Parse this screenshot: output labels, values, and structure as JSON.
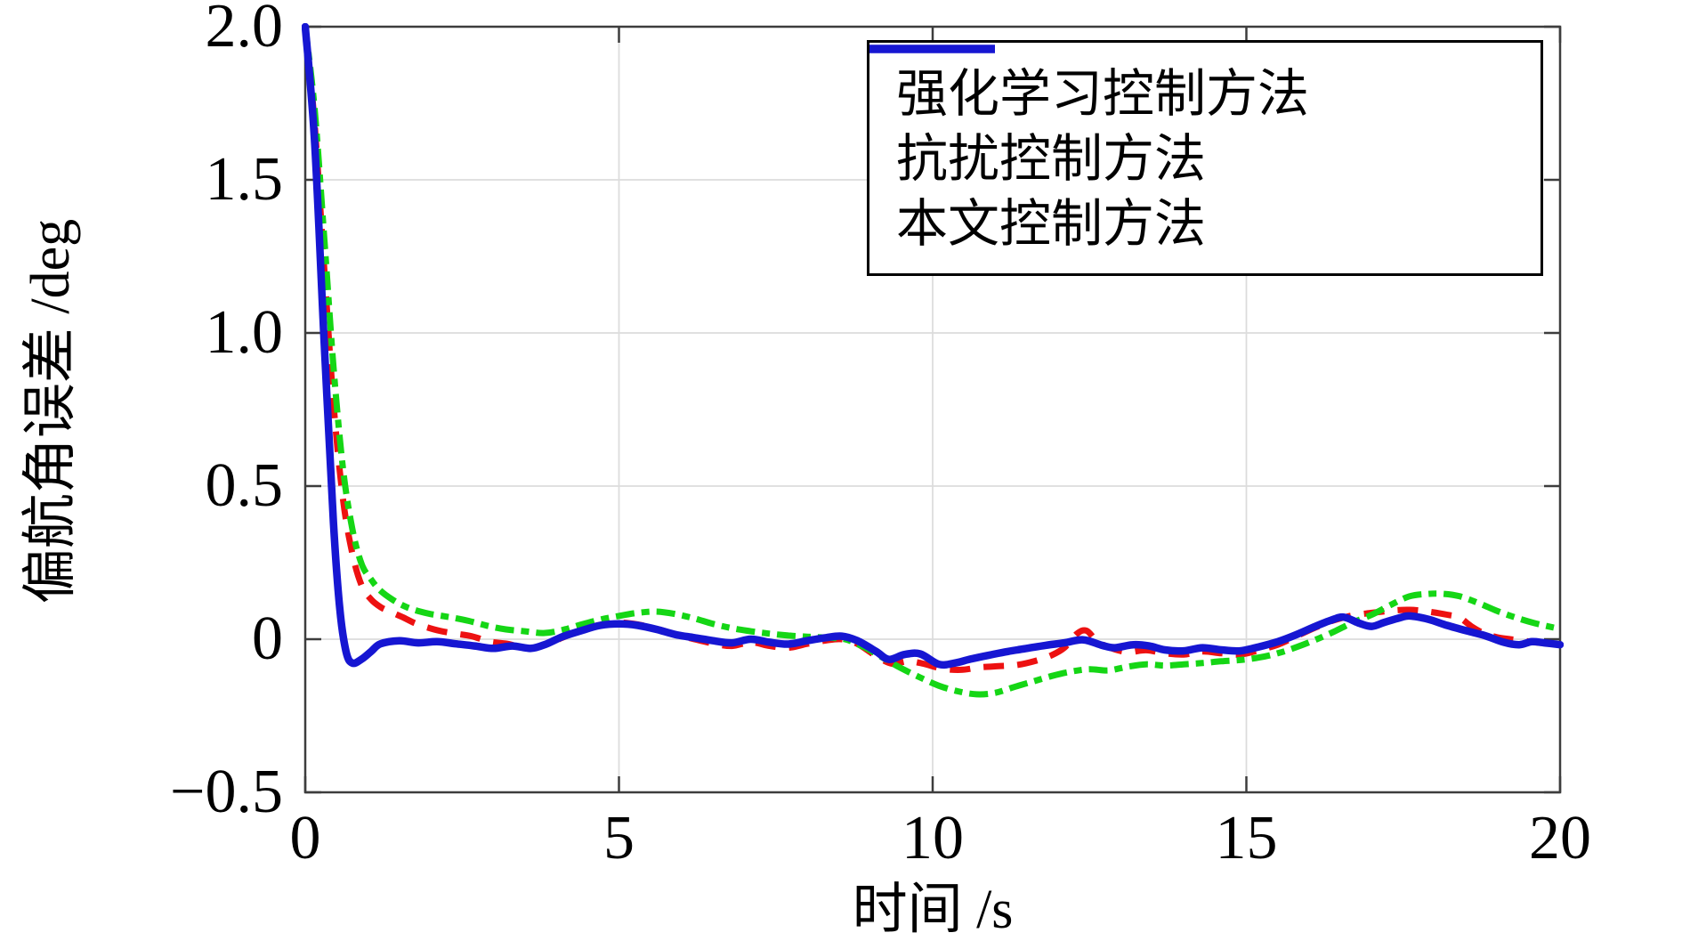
{
  "chart_data": {
    "type": "line",
    "title": "",
    "xlabel": "时间 /s",
    "ylabel": "偏航角误差 /deg",
    "xlim": [
      0,
      20
    ],
    "ylim": [
      -0.5,
      2.0
    ],
    "grid": "on",
    "legend_position": "top-right",
    "xticks": {
      "values": [
        0,
        5,
        10,
        15,
        20
      ],
      "labels": [
        "0",
        "5",
        "10",
        "15",
        "20"
      ]
    },
    "yticks": {
      "values": [
        -0.5,
        0,
        0.5,
        1.0,
        1.5,
        2.0
      ],
      "labels": [
        "−0.5",
        "0",
        "0.5",
        "1.0",
        "1.5",
        "2.0"
      ]
    },
    "grid_x": [
      5,
      10,
      15
    ],
    "grid_y": [
      0,
      0.5,
      1.0,
      1.5
    ],
    "style": {
      "axis_color": "#3d3d3d",
      "grid_color": "#dcdcdc",
      "legend_border_color": "#000000",
      "background": "#ffffff"
    },
    "series": [
      {
        "name": "强化学习控制方法",
        "color": "#ed1111",
        "line_style": "dashed",
        "dash": "23 15",
        "legend_dash": "30 26",
        "width": 7,
        "points": [
          [
            0,
            2.0
          ],
          [
            0.15,
            1.68
          ],
          [
            0.3,
            1.22
          ],
          [
            0.45,
            0.77
          ],
          [
            0.6,
            0.46
          ],
          [
            0.75,
            0.28
          ],
          [
            0.9,
            0.175
          ],
          [
            1.05,
            0.13
          ],
          [
            1.2,
            0.105
          ],
          [
            1.35,
            0.09
          ],
          [
            1.55,
            0.072
          ],
          [
            1.75,
            0.052
          ],
          [
            1.95,
            0.038
          ],
          [
            2.15,
            0.027
          ],
          [
            2.4,
            0.018
          ],
          [
            2.65,
            0.01
          ],
          [
            2.95,
            -0.008
          ],
          [
            3.25,
            -0.016
          ],
          [
            3.5,
            -0.03
          ],
          [
            3.8,
            -0.02
          ],
          [
            4.1,
            0.005
          ],
          [
            4.4,
            0.03
          ],
          [
            4.7,
            0.047
          ],
          [
            5.0,
            0.054
          ],
          [
            5.3,
            0.048
          ],
          [
            5.6,
            0.034
          ],
          [
            5.9,
            0.016
          ],
          [
            6.2,
            0.0
          ],
          [
            6.5,
            -0.014
          ],
          [
            6.8,
            -0.022
          ],
          [
            7.1,
            -0.01
          ],
          [
            7.4,
            -0.022
          ],
          [
            7.7,
            -0.028
          ],
          [
            8.0,
            -0.015
          ],
          [
            8.3,
            -0.004
          ],
          [
            8.55,
            0.0
          ],
          [
            8.8,
            -0.015
          ],
          [
            9.1,
            -0.055
          ],
          [
            9.35,
            -0.08
          ],
          [
            9.6,
            -0.072
          ],
          [
            9.85,
            -0.08
          ],
          [
            10.15,
            -0.096
          ],
          [
            10.45,
            -0.1
          ],
          [
            10.75,
            -0.092
          ],
          [
            11.05,
            -0.088
          ],
          [
            11.35,
            -0.084
          ],
          [
            11.65,
            -0.07
          ],
          [
            11.9,
            -0.052
          ],
          [
            12.1,
            -0.028
          ],
          [
            12.3,
            0.018
          ],
          [
            12.45,
            0.028
          ],
          [
            12.6,
            -0.002
          ],
          [
            12.8,
            -0.026
          ],
          [
            13.1,
            -0.042
          ],
          [
            13.4,
            -0.036
          ],
          [
            13.7,
            -0.046
          ],
          [
            14.0,
            -0.05
          ],
          [
            14.3,
            -0.04
          ],
          [
            14.6,
            -0.046
          ],
          [
            14.9,
            -0.05
          ],
          [
            15.2,
            -0.036
          ],
          [
            15.5,
            -0.018
          ],
          [
            15.8,
            0.01
          ],
          [
            16.1,
            0.038
          ],
          [
            16.4,
            0.062
          ],
          [
            16.7,
            0.078
          ],
          [
            17.0,
            0.086
          ],
          [
            17.3,
            0.093
          ],
          [
            17.6,
            0.096
          ],
          [
            17.9,
            0.09
          ],
          [
            18.2,
            0.08
          ],
          [
            18.4,
            0.07
          ],
          [
            18.6,
            0.04
          ],
          [
            18.8,
            0.018
          ],
          [
            19.0,
            0.006
          ],
          [
            19.2,
            0.0
          ],
          [
            19.45,
            -0.006
          ],
          [
            19.7,
            -0.012
          ],
          [
            20,
            -0.015
          ]
        ]
      },
      {
        "name": "抗扰控制方法",
        "color": "#15d615",
        "line_style": "dash-dot",
        "dash": "21 8 9 8",
        "legend_dash": "25 9 11 9",
        "width": 7,
        "points": [
          [
            0,
            2.0
          ],
          [
            0.15,
            1.73
          ],
          [
            0.3,
            1.32
          ],
          [
            0.45,
            0.89
          ],
          [
            0.6,
            0.56
          ],
          [
            0.75,
            0.36
          ],
          [
            0.9,
            0.245
          ],
          [
            1.05,
            0.195
          ],
          [
            1.2,
            0.158
          ],
          [
            1.4,
            0.128
          ],
          [
            1.6,
            0.106
          ],
          [
            1.8,
            0.092
          ],
          [
            2.0,
            0.082
          ],
          [
            2.3,
            0.072
          ],
          [
            2.6,
            0.06
          ],
          [
            2.9,
            0.044
          ],
          [
            3.2,
            0.032
          ],
          [
            3.5,
            0.026
          ],
          [
            3.8,
            0.02
          ],
          [
            4.1,
            0.03
          ],
          [
            4.4,
            0.048
          ],
          [
            4.7,
            0.064
          ],
          [
            5.0,
            0.076
          ],
          [
            5.3,
            0.086
          ],
          [
            5.6,
            0.09
          ],
          [
            5.9,
            0.082
          ],
          [
            6.2,
            0.068
          ],
          [
            6.5,
            0.05
          ],
          [
            6.8,
            0.036
          ],
          [
            7.1,
            0.026
          ],
          [
            7.4,
            0.018
          ],
          [
            7.7,
            0.012
          ],
          [
            8.0,
            0.008
          ],
          [
            8.3,
            0.005
          ],
          [
            8.6,
            0.0
          ],
          [
            8.9,
            -0.025
          ],
          [
            9.2,
            -0.06
          ],
          [
            9.5,
            -0.095
          ],
          [
            9.8,
            -0.125
          ],
          [
            10.1,
            -0.152
          ],
          [
            10.4,
            -0.17
          ],
          [
            10.7,
            -0.18
          ],
          [
            11.0,
            -0.175
          ],
          [
            11.3,
            -0.156
          ],
          [
            11.6,
            -0.138
          ],
          [
            11.9,
            -0.12
          ],
          [
            12.2,
            -0.106
          ],
          [
            12.5,
            -0.098
          ],
          [
            12.8,
            -0.102
          ],
          [
            13.1,
            -0.09
          ],
          [
            13.4,
            -0.082
          ],
          [
            13.7,
            -0.086
          ],
          [
            14.0,
            -0.082
          ],
          [
            14.3,
            -0.078
          ],
          [
            14.6,
            -0.072
          ],
          [
            14.9,
            -0.068
          ],
          [
            15.2,
            -0.06
          ],
          [
            15.5,
            -0.046
          ],
          [
            15.8,
            -0.026
          ],
          [
            16.1,
            -0.002
          ],
          [
            16.4,
            0.025
          ],
          [
            16.7,
            0.055
          ],
          [
            17.0,
            0.08
          ],
          [
            17.3,
            0.112
          ],
          [
            17.6,
            0.14
          ],
          [
            17.9,
            0.148
          ],
          [
            18.15,
            0.148
          ],
          [
            18.4,
            0.14
          ],
          [
            18.7,
            0.118
          ],
          [
            19.0,
            0.092
          ],
          [
            19.3,
            0.07
          ],
          [
            19.6,
            0.052
          ],
          [
            19.85,
            0.04
          ],
          [
            20,
            0.034
          ]
        ]
      },
      {
        "name": "本文控制方法",
        "color": "#1616d2",
        "line_style": "solid",
        "dash": "",
        "legend_dash": "",
        "width": 8.5,
        "points": [
          [
            0,
            2.0
          ],
          [
            0.15,
            1.62
          ],
          [
            0.3,
            0.98
          ],
          [
            0.45,
            0.38
          ],
          [
            0.55,
            0.1
          ],
          [
            0.65,
            -0.04
          ],
          [
            0.75,
            -0.078
          ],
          [
            0.9,
            -0.065
          ],
          [
            1.05,
            -0.04
          ],
          [
            1.2,
            -0.015
          ],
          [
            1.5,
            -0.005
          ],
          [
            1.8,
            -0.012
          ],
          [
            2.1,
            -0.008
          ],
          [
            2.4,
            -0.015
          ],
          [
            2.7,
            -0.022
          ],
          [
            3.0,
            -0.03
          ],
          [
            3.3,
            -0.022
          ],
          [
            3.6,
            -0.03
          ],
          [
            3.85,
            -0.015
          ],
          [
            4.1,
            0.008
          ],
          [
            4.4,
            0.028
          ],
          [
            4.7,
            0.045
          ],
          [
            5.0,
            0.05
          ],
          [
            5.3,
            0.045
          ],
          [
            5.6,
            0.032
          ],
          [
            5.9,
            0.015
          ],
          [
            6.2,
            0.005
          ],
          [
            6.5,
            -0.005
          ],
          [
            6.8,
            -0.012
          ],
          [
            7.1,
            0.0
          ],
          [
            7.4,
            -0.01
          ],
          [
            7.7,
            -0.016
          ],
          [
            8.0,
            -0.005
          ],
          [
            8.3,
            0.005
          ],
          [
            8.55,
            0.01
          ],
          [
            8.8,
            -0.005
          ],
          [
            9.1,
            -0.04
          ],
          [
            9.3,
            -0.066
          ],
          [
            9.55,
            -0.05
          ],
          [
            9.8,
            -0.048
          ],
          [
            10.1,
            -0.082
          ],
          [
            10.35,
            -0.078
          ],
          [
            10.6,
            -0.065
          ],
          [
            10.9,
            -0.052
          ],
          [
            11.2,
            -0.04
          ],
          [
            11.5,
            -0.03
          ],
          [
            11.8,
            -0.02
          ],
          [
            12.1,
            -0.012
          ],
          [
            12.4,
            -0.002
          ],
          [
            12.7,
            -0.02
          ],
          [
            12.9,
            -0.028
          ],
          [
            13.2,
            -0.018
          ],
          [
            13.45,
            -0.022
          ],
          [
            13.7,
            -0.035
          ],
          [
            14.0,
            -0.038
          ],
          [
            14.3,
            -0.028
          ],
          [
            14.6,
            -0.035
          ],
          [
            14.9,
            -0.038
          ],
          [
            15.2,
            -0.025
          ],
          [
            15.5,
            -0.008
          ],
          [
            15.8,
            0.015
          ],
          [
            16.1,
            0.042
          ],
          [
            16.35,
            0.062
          ],
          [
            16.55,
            0.072
          ],
          [
            16.8,
            0.052
          ],
          [
            17.0,
            0.042
          ],
          [
            17.2,
            0.055
          ],
          [
            17.45,
            0.07
          ],
          [
            17.6,
            0.076
          ],
          [
            17.9,
            0.065
          ],
          [
            18.2,
            0.045
          ],
          [
            18.5,
            0.028
          ],
          [
            18.8,
            0.012
          ],
          [
            19.1,
            -0.01
          ],
          [
            19.35,
            -0.018
          ],
          [
            19.55,
            -0.008
          ],
          [
            19.75,
            -0.012
          ],
          [
            20,
            -0.018
          ]
        ]
      }
    ]
  }
}
